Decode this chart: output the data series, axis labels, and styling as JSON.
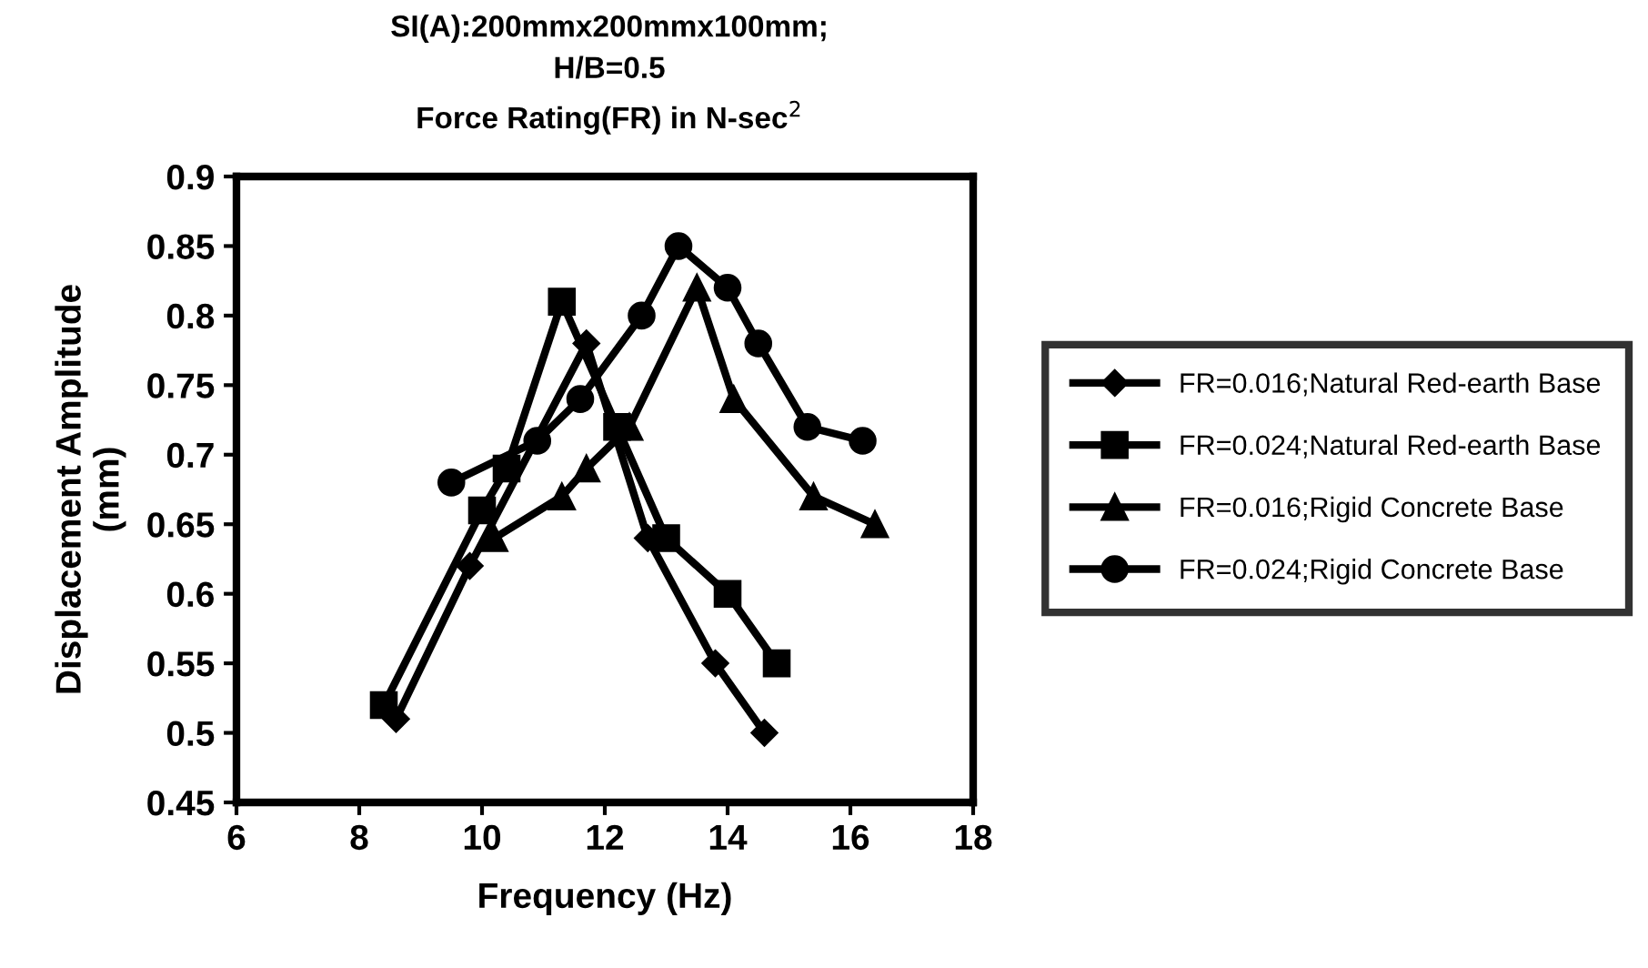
{
  "chart_data": {
    "type": "line",
    "title": "SI(A):200mmx200mmx100mm;\nH/B=0.5\nForce Rating(FR) in N-sec$^{2}$",
    "xlabel": "Frequency (Hz)",
    "ylabel": "Displacement Amplitude\n(mm)",
    "xlim": [
      6,
      18
    ],
    "xticks": [
      6,
      8,
      10,
      12,
      14,
      16,
      18
    ],
    "ylim": [
      0.45,
      0.9
    ],
    "yticks": [
      0.45,
      0.5,
      0.55,
      0.6,
      0.65,
      0.7,
      0.75,
      0.8,
      0.85,
      0.9
    ],
    "grid": false,
    "legend": "right",
    "line_style": "solid",
    "series": [
      {
        "name": "FR=0.016;Natural Red-earth Base",
        "color": "#000000",
        "marker": "diamond",
        "x": [
          8.6,
          9.8,
          11.7,
          12.7,
          13.8,
          14.6
        ],
        "values": [
          0.51,
          0.62,
          0.78,
          0.64,
          0.55,
          0.5
        ]
      },
      {
        "name": "FR=0.024;Natural Red-earth Base",
        "color": "#000000",
        "marker": "square",
        "x": [
          8.4,
          10.0,
          10.4,
          11.3,
          12.2,
          13.0,
          14.0,
          14.8
        ],
        "values": [
          0.52,
          0.66,
          0.69,
          0.81,
          0.72,
          0.64,
          0.6,
          0.55
        ]
      },
      {
        "name": "FR=0.016;Rigid Concrete Base",
        "color": "#000000",
        "marker": "triangle",
        "x": [
          10.2,
          11.3,
          11.7,
          12.4,
          13.5,
          14.1,
          15.4,
          16.4
        ],
        "values": [
          0.64,
          0.67,
          0.69,
          0.72,
          0.82,
          0.74,
          0.67,
          0.65
        ]
      },
      {
        "name": "FR=0.024;Rigid Concrete Base",
        "color": "#000000",
        "marker": "circle",
        "x": [
          9.5,
          10.9,
          11.6,
          12.6,
          13.2,
          14.0,
          14.5,
          15.3,
          16.2
        ],
        "values": [
          0.68,
          0.71,
          0.74,
          0.8,
          0.85,
          0.82,
          0.78,
          0.72,
          0.71
        ]
      }
    ]
  }
}
